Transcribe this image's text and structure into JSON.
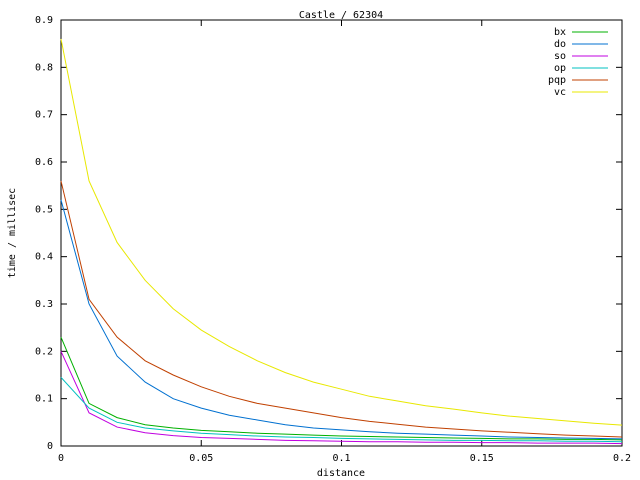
{
  "chart_data": {
    "type": "line",
    "title": "Castle / 62304",
    "xlabel": "distance",
    "ylabel": "time / millisec",
    "x": [
      0,
      0.01,
      0.02,
      0.03,
      0.04,
      0.05,
      0.06,
      0.07,
      0.08,
      0.09,
      0.1,
      0.11,
      0.12,
      0.13,
      0.14,
      0.15,
      0.16,
      0.17,
      0.18,
      0.19,
      0.2
    ],
    "series": [
      {
        "name": "bx",
        "color": "#00b000",
        "values": [
          0.23,
          0.09,
          0.06,
          0.045,
          0.038,
          0.033,
          0.03,
          0.027,
          0.025,
          0.023,
          0.021,
          0.02,
          0.019,
          0.018,
          0.017,
          0.016,
          0.015,
          0.015,
          0.014,
          0.014,
          0.013
        ]
      },
      {
        "name": "do",
        "color": "#0070d0",
        "values": [
          0.52,
          0.3,
          0.19,
          0.135,
          0.1,
          0.08,
          0.065,
          0.055,
          0.045,
          0.038,
          0.034,
          0.03,
          0.027,
          0.025,
          0.023,
          0.021,
          0.019,
          0.018,
          0.017,
          0.016,
          0.015
        ]
      },
      {
        "name": "so",
        "color": "#c000e0",
        "values": [
          0.2,
          0.07,
          0.04,
          0.028,
          0.022,
          0.018,
          0.016,
          0.014,
          0.012,
          0.011,
          0.01,
          0.009,
          0.009,
          0.008,
          0.008,
          0.007,
          0.007,
          0.006,
          0.006,
          0.006,
          0.005
        ]
      },
      {
        "name": "op",
        "color": "#00c0c0",
        "values": [
          0.145,
          0.08,
          0.05,
          0.038,
          0.032,
          0.027,
          0.024,
          0.021,
          0.019,
          0.018,
          0.016,
          0.015,
          0.014,
          0.013,
          0.012,
          0.012,
          0.011,
          0.011,
          0.01,
          0.01,
          0.009
        ]
      },
      {
        "name": "pqp",
        "color": "#c04000",
        "values": [
          0.56,
          0.31,
          0.23,
          0.18,
          0.15,
          0.125,
          0.105,
          0.09,
          0.08,
          0.07,
          0.06,
          0.052,
          0.046,
          0.04,
          0.036,
          0.032,
          0.029,
          0.026,
          0.023,
          0.021,
          0.019
        ]
      },
      {
        "name": "vc",
        "color": "#e8e800",
        "values": [
          0.86,
          0.56,
          0.43,
          0.35,
          0.29,
          0.245,
          0.21,
          0.18,
          0.155,
          0.135,
          0.12,
          0.105,
          0.095,
          0.085,
          0.078,
          0.07,
          0.063,
          0.058,
          0.053,
          0.048,
          0.044
        ]
      }
    ],
    "xlim": [
      0,
      0.2
    ],
    "xticks": [
      0,
      0.05,
      0.1,
      0.15,
      0.2
    ],
    "ylim": [
      0,
      0.9
    ],
    "yticks": [
      0,
      0.1,
      0.2,
      0.3,
      0.4,
      0.5,
      0.6,
      0.7,
      0.8,
      0.9
    ],
    "legend": "top-right"
  }
}
